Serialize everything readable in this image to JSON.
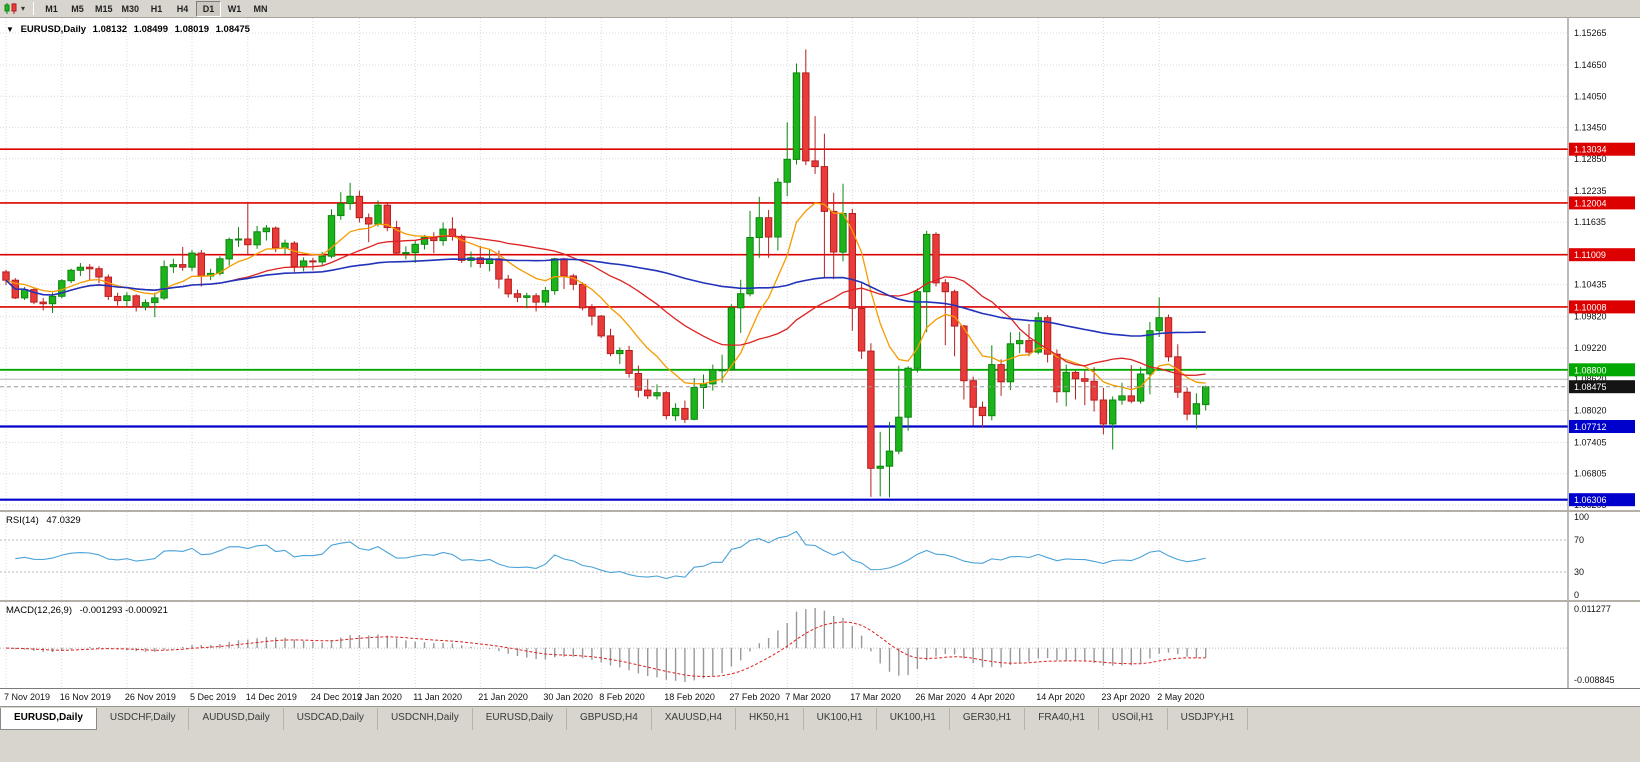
{
  "toolbar": {
    "dropdown_glyph": "▾",
    "timeframes": [
      {
        "label": "M1",
        "active": false
      },
      {
        "label": "M5",
        "active": false
      },
      {
        "label": "M15",
        "active": false
      },
      {
        "label": "M30",
        "active": false
      },
      {
        "label": "H1",
        "active": false
      },
      {
        "label": "H4",
        "active": false
      },
      {
        "label": "D1",
        "active": true
      },
      {
        "label": "W1",
        "active": false
      },
      {
        "label": "MN",
        "active": false
      }
    ]
  },
  "title": {
    "marker": "▼",
    "symbol": "EURUSD,Daily",
    "open": "1.08132",
    "high": "1.08499",
    "low": "1.08019",
    "close": "1.08475"
  },
  "chart_data": {
    "type": "candlestick",
    "symbol": "EURUSD",
    "period": "Daily",
    "price_axis_labels": [
      "1.15265",
      "1.14650",
      "1.14050",
      "1.13450",
      "1.12850",
      "1.12235",
      "1.11635",
      "1.10435",
      "1.09820",
      "1.09220",
      "1.08620",
      "1.08020",
      "1.07405",
      "1.06805",
      "1.06205"
    ],
    "x_labels": [
      {
        "text": "7 Nov 2019",
        "bar": 0
      },
      {
        "text": "16 Nov 2019",
        "bar": 6
      },
      {
        "text": "26 Nov 2019",
        "bar": 13
      },
      {
        "text": "5 Dec 2019",
        "bar": 20
      },
      {
        "text": "14 Dec 2019",
        "bar": 26
      },
      {
        "text": "24 Dec 2019",
        "bar": 33
      },
      {
        "text": "2 Jan 2020",
        "bar": 38
      },
      {
        "text": "11 Jan 2020",
        "bar": 44
      },
      {
        "text": "21 Jan 2020",
        "bar": 51
      },
      {
        "text": "30 Jan 2020",
        "bar": 58
      },
      {
        "text": "8 Feb 2020",
        "bar": 64
      },
      {
        "text": "18 Feb 2020",
        "bar": 71
      },
      {
        "text": "27 Feb 2020",
        "bar": 78
      },
      {
        "text": "7 Mar 2020",
        "bar": 84
      },
      {
        "text": "17 Mar 2020",
        "bar": 91
      },
      {
        "text": "26 Mar 2020",
        "bar": 98
      },
      {
        "text": "4 Apr 2020",
        "bar": 104
      },
      {
        "text": "14 Apr 2020",
        "bar": 111
      },
      {
        "text": "23 Apr 2020",
        "bar": 118
      },
      {
        "text": "2 May 2020",
        "bar": 124
      }
    ],
    "candles": [
      [
        1.1068,
        1.1072,
        1.1043,
        1.1052
      ],
      [
        1.1052,
        1.1056,
        1.1016,
        1.1018
      ],
      [
        1.1018,
        1.1039,
        1.1014,
        1.1034
      ],
      [
        1.1034,
        1.1038,
        1.1006,
        1.101
      ],
      [
        1.101,
        1.1018,
        1.0994,
        1.1007
      ],
      [
        1.1007,
        1.1028,
        1.0989,
        1.1021
      ],
      [
        1.1021,
        1.1054,
        1.1017,
        1.1051
      ],
      [
        1.1051,
        1.1074,
        1.1046,
        1.1071
      ],
      [
        1.1071,
        1.1085,
        1.106,
        1.1077
      ],
      [
        1.1077,
        1.1083,
        1.1052,
        1.1074
      ],
      [
        1.1074,
        1.1079,
        1.1046,
        1.1058
      ],
      [
        1.1058,
        1.1063,
        1.1014,
        1.1021
      ],
      [
        1.1021,
        1.1028,
        1.1003,
        1.1013
      ],
      [
        1.1013,
        1.1029,
        1.1001,
        1.1022
      ],
      [
        1.1022,
        1.1025,
        1.0992,
        1.1001
      ],
      [
        1.1001,
        1.1015,
        1.0994,
        1.1009
      ],
      [
        1.1009,
        1.1028,
        1.0981,
        1.1018
      ],
      [
        1.1018,
        1.109,
        1.1014,
        1.1078
      ],
      [
        1.1078,
        1.1093,
        1.1066,
        1.1082
      ],
      [
        1.1082,
        1.1116,
        1.107,
        1.1077
      ],
      [
        1.1077,
        1.111,
        1.1069,
        1.1104
      ],
      [
        1.1104,
        1.111,
        1.104,
        1.106
      ],
      [
        1.106,
        1.1074,
        1.1052,
        1.1065
      ],
      [
        1.1065,
        1.1098,
        1.1061,
        1.1093
      ],
      [
        1.1093,
        1.1134,
        1.108,
        1.113
      ],
      [
        1.113,
        1.1154,
        1.1116,
        1.1131
      ],
      [
        1.1131,
        1.12,
        1.1102,
        1.112
      ],
      [
        1.112,
        1.1156,
        1.1112,
        1.1145
      ],
      [
        1.1145,
        1.1158,
        1.1128,
        1.1152
      ],
      [
        1.1152,
        1.1155,
        1.1106,
        1.1114
      ],
      [
        1.1114,
        1.113,
        1.1102,
        1.1123
      ],
      [
        1.1123,
        1.1127,
        1.1066,
        1.1078
      ],
      [
        1.1078,
        1.1096,
        1.1069,
        1.1089
      ],
      [
        1.1089,
        1.1095,
        1.1071,
        1.1087
      ],
      [
        1.1087,
        1.1106,
        1.108,
        1.1098
      ],
      [
        1.1098,
        1.1188,
        1.1094,
        1.1176
      ],
      [
        1.1176,
        1.1221,
        1.1168,
        1.1199
      ],
      [
        1.1199,
        1.1239,
        1.1187,
        1.1213
      ],
      [
        1.1213,
        1.1224,
        1.1163,
        1.1172
      ],
      [
        1.1172,
        1.118,
        1.1125,
        1.116
      ],
      [
        1.116,
        1.1205,
        1.1155,
        1.1196
      ],
      [
        1.1196,
        1.12,
        1.1146,
        1.1153
      ],
      [
        1.1153,
        1.1166,
        1.11,
        1.1104
      ],
      [
        1.1104,
        1.1117,
        1.1092,
        1.1105
      ],
      [
        1.1105,
        1.1128,
        1.1085,
        1.1121
      ],
      [
        1.1121,
        1.1139,
        1.1111,
        1.1134
      ],
      [
        1.1134,
        1.1144,
        1.1104,
        1.1128
      ],
      [
        1.1128,
        1.1163,
        1.1118,
        1.115
      ],
      [
        1.115,
        1.1173,
        1.1128,
        1.1136
      ],
      [
        1.1136,
        1.114,
        1.1085,
        1.109
      ],
      [
        1.109,
        1.1107,
        1.1077,
        1.1095
      ],
      [
        1.1095,
        1.1118,
        1.1076,
        1.1084
      ],
      [
        1.1084,
        1.111,
        1.1069,
        1.1093
      ],
      [
        1.1093,
        1.1109,
        1.1036,
        1.1054
      ],
      [
        1.1054,
        1.1062,
        1.1019,
        1.1026
      ],
      [
        1.1026,
        1.1034,
        1.101,
        1.1019
      ],
      [
        1.1019,
        1.1028,
        1.0998,
        1.1022
      ],
      [
        1.1022,
        1.1027,
        1.0992,
        1.101
      ],
      [
        1.101,
        1.1039,
        1.1001,
        1.1032
      ],
      [
        1.1032,
        1.1095,
        1.1024,
        1.1093
      ],
      [
        1.1093,
        1.1095,
        1.1035,
        1.106
      ],
      [
        1.106,
        1.1064,
        1.1033,
        1.1044
      ],
      [
        1.1044,
        1.1048,
        1.0994,
        1.0999
      ],
      [
        1.0999,
        1.1006,
        1.0965,
        1.0983
      ],
      [
        1.0983,
        1.0985,
        1.0941,
        1.0945
      ],
      [
        1.0945,
        1.0959,
        1.0906,
        1.0911
      ],
      [
        1.0911,
        1.0923,
        1.0891,
        1.0917
      ],
      [
        1.0917,
        1.0926,
        1.0865,
        1.0873
      ],
      [
        1.0873,
        1.0888,
        1.0827,
        1.0841
      ],
      [
        1.0841,
        1.0862,
        1.0824,
        1.083
      ],
      [
        1.083,
        1.0852,
        1.0823,
        1.0836
      ],
      [
        1.0836,
        1.0839,
        1.0785,
        1.0792
      ],
      [
        1.0792,
        1.0816,
        1.0782,
        1.0806
      ],
      [
        1.0806,
        1.0821,
        1.0778,
        1.0785
      ],
      [
        1.0785,
        1.0864,
        1.0783,
        1.0846
      ],
      [
        1.0846,
        1.0871,
        1.0805,
        1.0853
      ],
      [
        1.0853,
        1.089,
        1.084,
        1.088
      ],
      [
        1.088,
        1.0909,
        1.0855,
        1.088
      ],
      [
        1.088,
        1.1006,
        1.0878,
        1.0999
      ],
      [
        1.0999,
        1.1053,
        1.0951,
        1.1026
      ],
      [
        1.1026,
        1.1185,
        1.1021,
        1.1134
      ],
      [
        1.1134,
        1.1212,
        1.1095,
        1.1172
      ],
      [
        1.1172,
        1.1187,
        1.1095,
        1.1135
      ],
      [
        1.1135,
        1.1248,
        1.1109,
        1.124
      ],
      [
        1.124,
        1.1355,
        1.1213,
        1.1284
      ],
      [
        1.1284,
        1.1468,
        1.1274,
        1.145
      ],
      [
        1.145,
        1.1495,
        1.1273,
        1.1281
      ],
      [
        1.1281,
        1.1367,
        1.1256,
        1.127
      ],
      [
        1.127,
        1.1333,
        1.1055,
        1.1184
      ],
      [
        1.1184,
        1.122,
        1.1054,
        1.1106
      ],
      [
        1.1106,
        1.1237,
        1.1088,
        1.118
      ],
      [
        1.118,
        1.1189,
        1.0955,
        1.0998
      ],
      [
        1.0998,
        1.1046,
        1.0901,
        1.0916
      ],
      [
        1.0916,
        1.0931,
        1.0636,
        1.0691
      ],
      [
        1.0691,
        1.0761,
        1.0637,
        1.0695
      ],
      [
        1.0695,
        1.078,
        1.0635,
        1.0724
      ],
      [
        1.0724,
        1.0888,
        1.0718,
        1.0789
      ],
      [
        1.0789,
        1.0887,
        1.0763,
        1.0883
      ],
      [
        1.0883,
        1.1036,
        1.0875,
        1.103
      ],
      [
        1.103,
        1.1147,
        1.0952,
        1.114
      ],
      [
        1.114,
        1.1144,
        1.104,
        1.1047
      ],
      [
        1.1047,
        1.1054,
        1.0927,
        1.103
      ],
      [
        1.103,
        1.1034,
        1.0906,
        1.0964
      ],
      [
        1.0964,
        1.0966,
        1.0823,
        1.0859
      ],
      [
        1.0859,
        1.0867,
        1.0773,
        1.0808
      ],
      [
        1.0808,
        1.0819,
        1.0769,
        1.0792
      ],
      [
        1.0792,
        1.0927,
        1.0783,
        1.089
      ],
      [
        1.089,
        1.09,
        1.083,
        1.0857
      ],
      [
        1.0857,
        1.0952,
        1.0841,
        1.093
      ],
      [
        1.093,
        1.0953,
        1.0912,
        1.0936
      ],
      [
        1.0936,
        1.0968,
        1.0906,
        1.0914
      ],
      [
        1.0914,
        1.099,
        1.091,
        1.098
      ],
      [
        1.098,
        1.0985,
        1.0894,
        1.091
      ],
      [
        1.091,
        1.0919,
        1.0817,
        1.0838
      ],
      [
        1.0838,
        1.089,
        1.081,
        1.0875
      ],
      [
        1.0875,
        1.0878,
        1.0823,
        1.0863
      ],
      [
        1.0863,
        1.0878,
        1.0812,
        1.0858
      ],
      [
        1.0858,
        1.0885,
        1.08,
        1.0822
      ],
      [
        1.0822,
        1.0845,
        1.0756,
        1.0776
      ],
      [
        1.0776,
        1.0829,
        1.0727,
        1.0822
      ],
      [
        1.0822,
        1.0855,
        1.0813,
        1.083
      ],
      [
        1.083,
        1.0889,
        1.0816,
        1.082
      ],
      [
        1.082,
        1.0885,
        1.0815,
        1.0872
      ],
      [
        1.0872,
        1.0972,
        1.0833,
        1.0955
      ],
      [
        1.0955,
        1.1019,
        1.0943,
        1.098
      ],
      [
        1.098,
        1.0986,
        1.0896,
        1.0905
      ],
      [
        1.0905,
        1.0929,
        1.0826,
        1.0837
      ],
      [
        1.0837,
        1.0846,
        1.0783,
        1.0795
      ],
      [
        1.0795,
        1.0835,
        1.0767,
        1.0815
      ],
      [
        1.08132,
        1.08499,
        1.08019,
        1.08475
      ]
    ],
    "sr_lines": [
      {
        "value": 1.13034,
        "color": "#dd0000",
        "width": 1.6,
        "badge": "1.13034"
      },
      {
        "value": 1.12004,
        "color": "#dd0000",
        "width": 1.6,
        "badge": "1.12004"
      },
      {
        "value": 1.11009,
        "color": "#dd0000",
        "width": 1.6,
        "badge": "1.11009"
      },
      {
        "value": 1.10008,
        "color": "#dd0000",
        "width": 1.6,
        "badge": "1.10008"
      },
      {
        "value": 1.088,
        "color": "#00a800",
        "width": 1.8,
        "badge": "1.08800"
      },
      {
        "value": 1.0862,
        "color": "#bbbbbb",
        "width": 1,
        "badge": null
      },
      {
        "value": 1.07712,
        "color": "#0000cc",
        "width": 2.2,
        "badge": "1.07712"
      },
      {
        "value": 1.06306,
        "color": "#0000cc",
        "width": 2.2,
        "badge": "1.06306"
      }
    ],
    "current_price": {
      "value": 1.08475,
      "badge": "1.08475",
      "badge_color": "#141414",
      "line_color": "#999999"
    },
    "ma_lines": [
      {
        "name": "ma-fast-line",
        "method": "ema",
        "period": 10,
        "color": "#f59b00",
        "width": 1.3
      },
      {
        "name": "ma-mid-line",
        "method": "sma",
        "period": 24,
        "color": "#dd2222",
        "width": 1.3
      },
      {
        "name": "ma-slow-line",
        "method": "sma",
        "period": 55,
        "color": "#2233bb",
        "width": 1.6
      }
    ],
    "colors": {
      "up_fill": "#1db31d",
      "up_edge": "#0c870c",
      "down_fill": "#ea3b3b",
      "down_edge": "#b51f1f",
      "grid": "#d9d9d9"
    },
    "rsi": {
      "label": "RSI(14)",
      "value": "47.0329",
      "period": 14,
      "upper": 70,
      "lower": 30,
      "axis_labels": [
        "100",
        "70",
        "30",
        "0"
      ],
      "color": "#4aa2d9"
    },
    "macd": {
      "label": "MACD(12,26,9)",
      "value": "-0.001293 -0.000921",
      "fast": 12,
      "slow": 26,
      "signal": 9,
      "axis_top": "0.011277",
      "axis_bottom": "-0.008845",
      "hist_color": "#999999",
      "signal_color": "#dd2222"
    }
  },
  "tabs": [
    {
      "label": "EURUSD,Daily",
      "active": true
    },
    {
      "label": "USDCHF,Daily",
      "active": false
    },
    {
      "label": "AUDUSD,Daily",
      "active": false
    },
    {
      "label": "USDCAD,Daily",
      "active": false
    },
    {
      "label": "USDCNH,Daily",
      "active": false
    },
    {
      "label": "EURUSD,Daily",
      "active": false
    },
    {
      "label": "GBPUSD,H4",
      "active": false
    },
    {
      "label": "XAUUSD,H4",
      "active": false
    },
    {
      "label": "HK50,H1",
      "active": false
    },
    {
      "label": "UK100,H1",
      "active": false
    },
    {
      "label": "UK100,H1",
      "active": false
    },
    {
      "label": "GER30,H1",
      "active": false
    },
    {
      "label": "FRA40,H1",
      "active": false
    },
    {
      "label": "USOil,H1",
      "active": false
    },
    {
      "label": "USDJPY,H1",
      "active": false
    }
  ]
}
